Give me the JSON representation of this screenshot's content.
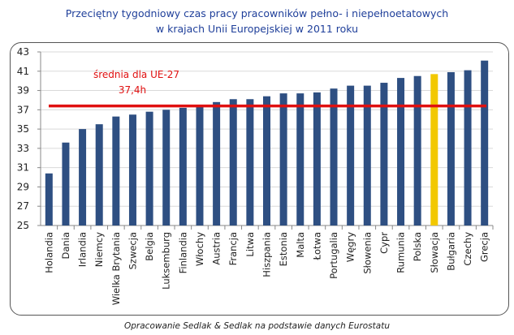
{
  "chart_data": {
    "type": "bar",
    "title": [
      "Przeciętny tygodniowy  czas pracy pracowników  pełno- i niepełnoetatowych",
      "w krajach Unii Europejskiej  w 2011 roku"
    ],
    "categories": [
      "Holandia",
      "Dania",
      "Irlandia",
      "Niemcy",
      "Wielka Brytania",
      "Szwecja",
      "Belgia",
      "Luksemburg",
      "Finlandia",
      "Włochy",
      "Austria",
      "Francja",
      "Litwa",
      "Hiszpania",
      "Estonia",
      "Malta",
      "Łotwa",
      "Portugalia",
      "Węgry",
      "Słowenia",
      "Cypr",
      "Rumunia",
      "Polska",
      "Słowacja",
      "Bułgaria",
      "Czechy",
      "Grecja"
    ],
    "values": [
      30.4,
      33.6,
      35.0,
      35.5,
      36.3,
      36.5,
      36.8,
      37.0,
      37.2,
      37.5,
      37.8,
      38.1,
      38.1,
      38.4,
      38.7,
      38.7,
      38.8,
      39.2,
      39.5,
      39.5,
      39.8,
      40.3,
      40.5,
      40.7,
      40.9,
      41.1,
      42.1
    ],
    "highlight": "Słowacja",
    "bar_color": "#2e4f82",
    "highlight_color": "#f2c800",
    "ylim": [
      25,
      43
    ],
    "yticks": [
      25,
      27,
      29,
      31,
      33,
      35,
      37,
      39,
      41,
      43
    ],
    "grid": true,
    "reference_line": {
      "value": 37.4,
      "label": "średnia dla UE-27",
      "value_label": "37,4h",
      "color": "#e01010"
    },
    "source": "Opracowanie Sedlak & Sedlak na podstawie danych Eurostatu"
  }
}
